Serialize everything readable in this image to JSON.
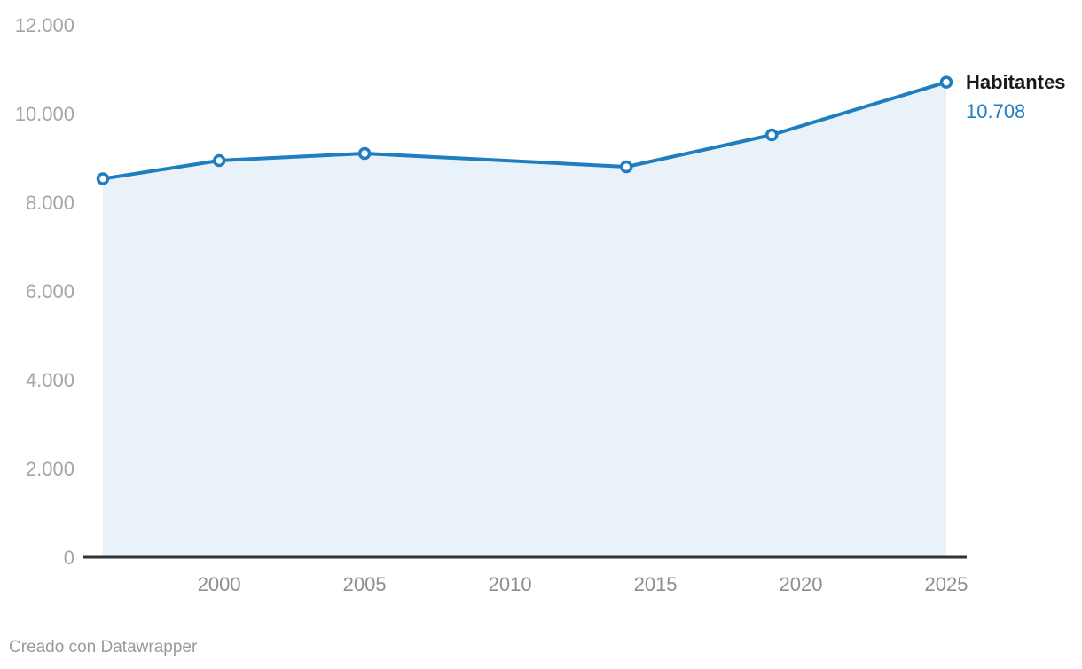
{
  "chart_data": {
    "type": "area",
    "title": "",
    "series": [
      {
        "name": "Habitantes",
        "x": [
          1996,
          2000,
          2005,
          2014,
          2019,
          2025
        ],
        "values": [
          8530,
          8940,
          9100,
          8800,
          9520,
          10708
        ]
      }
    ],
    "end_label": {
      "name": "Habitantes",
      "value_label": "10.708"
    },
    "xlim": [
      1996,
      2025
    ],
    "ylim": [
      0,
      12000
    ],
    "x_ticks": [
      {
        "value": 2000,
        "label": "2000"
      },
      {
        "value": 2005,
        "label": "2005"
      },
      {
        "value": 2010,
        "label": "2010"
      },
      {
        "value": 2015,
        "label": "2015"
      },
      {
        "value": 2020,
        "label": "2020"
      },
      {
        "value": 2025,
        "label": "2025"
      }
    ],
    "y_ticks": [
      {
        "value": 0,
        "label": "0"
      },
      {
        "value": 2000,
        "label": "2.000"
      },
      {
        "value": 4000,
        "label": "4.000"
      },
      {
        "value": 6000,
        "label": "6.000"
      },
      {
        "value": 8000,
        "label": "8.000"
      },
      {
        "value": 10000,
        "label": "10.000"
      },
      {
        "value": 12000,
        "label": "12.000"
      }
    ],
    "grid": false,
    "legend_position": "end-of-line",
    "colors": {
      "line": "#1f7ebf",
      "area_fill": "#e9f1f9",
      "marker_fill": "#ffffff",
      "axis_line": "#333333",
      "y_tick_text": "#a5a5a5",
      "x_tick_text": "#8e8e8e",
      "end_label_name": "#191919",
      "end_label_value": "#1f7ebf",
      "attribution_text": "#9a9a9a"
    }
  },
  "footer": {
    "attribution_prefix": "Creado con ",
    "attribution_brand": "Datawrapper"
  }
}
